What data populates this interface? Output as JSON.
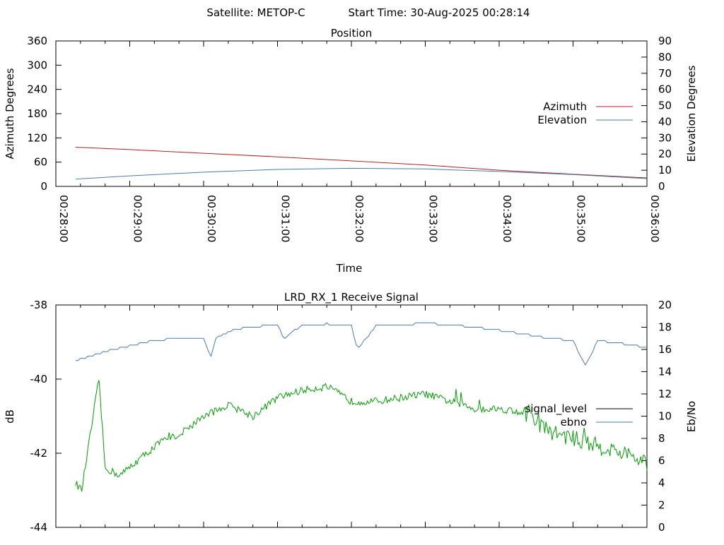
{
  "header": {
    "satellite_text": "Satellite: METOP-C",
    "start_time_text": "Start Time: 30-Aug-2025 00:28:14"
  },
  "chart_data": [
    {
      "type": "line",
      "title": "Position",
      "xlabel": "Time",
      "ylabel": "Azimuth Degrees",
      "y2label": "Elevation Degrees",
      "xlim": [
        "00:28:00",
        "00:36:00"
      ],
      "x_ticks": [
        "00:28:00",
        "00:29:00",
        "00:30:00",
        "00:31:00",
        "00:32:00",
        "00:33:00",
        "00:34:00",
        "00:35:00",
        "00:36:00"
      ],
      "ylim": [
        0,
        360
      ],
      "y_ticks": [
        "0",
        "60",
        "120",
        "180",
        "240",
        "300",
        "360"
      ],
      "y2lim": [
        0,
        90
      ],
      "y2_ticks": [
        "0",
        "10",
        "20",
        "30",
        "40",
        "50",
        "60",
        "70",
        "80",
        "90"
      ],
      "legend_position": "right",
      "series": [
        {
          "name": "Azimuth",
          "axis": "left",
          "color": "#b22222",
          "x": [
            "00:28:16",
            "00:29:00",
            "00:30:00",
            "00:31:00",
            "00:32:00",
            "00:33:00",
            "00:34:00",
            "00:35:00",
            "00:36:00"
          ],
          "values": [
            97,
            91,
            82,
            73,
            63,
            53,
            40,
            30,
            21
          ]
        },
        {
          "name": "Elevation",
          "axis": "right",
          "color": "#4a7ab0",
          "x": [
            "00:28:16",
            "00:29:00",
            "00:30:00",
            "00:31:00",
            "00:32:00",
            "00:33:00",
            "00:34:00",
            "00:35:00",
            "00:36:00"
          ],
          "values": [
            4.5,
            6.5,
            8.8,
            10.5,
            11.2,
            10.8,
            9.2,
            7.3,
            4.8
          ]
        }
      ]
    },
    {
      "type": "line",
      "title": "LRD_RX_1 Receive Signal",
      "ylabel": "dB",
      "y2label": "Eb/No",
      "ylim": [
        -44,
        -38
      ],
      "y_ticks": [
        "-44",
        "-42",
        "-40",
        "-38"
      ],
      "y2lim": [
        0,
        20
      ],
      "y2_ticks": [
        "0",
        "2",
        "4",
        "6",
        "8",
        "10",
        "12",
        "14",
        "16",
        "18",
        "20"
      ],
      "xlim": [
        "00:28:00",
        "00:36:00"
      ],
      "legend_position": "right",
      "series": [
        {
          "name": "signal_level",
          "axis": "left",
          "color": "#000000",
          "x": [
            "00:28:16",
            "00:28:21",
            "00:28:35",
            "00:28:40",
            "00:28:52",
            "00:29:10",
            "00:29:25",
            "00:29:40",
            "00:30:00",
            "00:30:20",
            "00:30:40",
            "00:31:00",
            "00:31:20",
            "00:31:40",
            "00:32:00",
            "00:32:20",
            "00:32:40",
            "00:33:00",
            "00:33:20",
            "00:33:40",
            "00:34:00",
            "00:34:20",
            "00:34:40",
            "00:35:00",
            "00:35:20",
            "00:35:40",
            "00:36:00"
          ],
          "values": [
            -42.8,
            -43.0,
            -40.0,
            -42.4,
            -42.6,
            -42.1,
            -41.7,
            -41.5,
            -41.0,
            -40.7,
            -41.0,
            -40.5,
            -40.3,
            -40.2,
            -40.6,
            -40.6,
            -40.5,
            -40.4,
            -40.6,
            -40.8,
            -40.8,
            -40.9,
            -41.4,
            -41.6,
            -41.8,
            -42.0,
            -42.3
          ]
        },
        {
          "name": "ebno",
          "axis": "right",
          "color": "#4a7ab0",
          "x": [
            "00:28:16",
            "00:28:40",
            "00:29:00",
            "00:29:20",
            "00:29:40",
            "00:30:00",
            "00:30:06",
            "00:30:10",
            "00:30:20",
            "00:30:35",
            "00:31:00",
            "00:31:05",
            "00:31:20",
            "00:31:40",
            "00:32:00",
            "00:32:05",
            "00:32:20",
            "00:32:40",
            "00:33:00",
            "00:33:20",
            "00:33:40",
            "00:34:00",
            "00:34:20",
            "00:34:40",
            "00:35:00",
            "00:35:10",
            "00:35:20",
            "00:35:40",
            "00:36:00"
          ],
          "values": [
            15.0,
            15.8,
            16.3,
            16.8,
            17.0,
            17.0,
            15.3,
            17.0,
            17.6,
            18.0,
            18.2,
            17.0,
            18.2,
            18.3,
            18.1,
            16.0,
            18.1,
            18.2,
            18.4,
            18.2,
            18.0,
            17.7,
            17.4,
            17.0,
            16.8,
            14.5,
            16.8,
            16.5,
            16.2
          ]
        }
      ]
    }
  ]
}
